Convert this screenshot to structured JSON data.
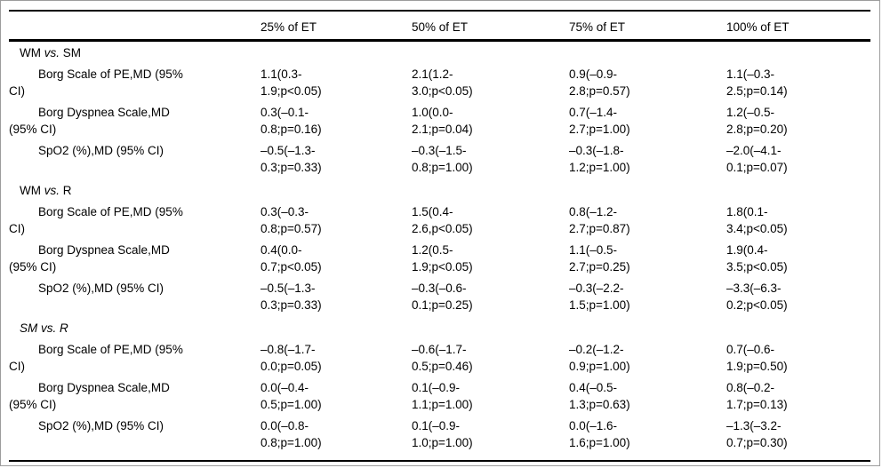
{
  "colors": {
    "rule": "#000000",
    "frame_border": "#9c9c9c",
    "background": "#ffffff",
    "text": "#000000"
  },
  "table": {
    "columns": [
      "",
      "25% of ET",
      "50% of ET",
      "75% of ET",
      "100% of ET"
    ],
    "sections": [
      {
        "label_parts": [
          {
            "text": "WM ",
            "italic": false
          },
          {
            "text": "vs.",
            "italic": true
          },
          {
            "text": " SM",
            "italic": false
          }
        ],
        "rows": [
          {
            "label": "Borg Scale of PE,MD (95%\nCI)",
            "values": [
              "1.1(0.3-\n1.9;p<0.05)",
              "2.1(1.2-\n3.0;p<0.05)",
              "0.9(–0.9-\n2.8;p=0.57)",
              "1.1(–0.3-\n2.5;p=0.14)"
            ]
          },
          {
            "label": "Borg Dyspnea Scale,MD\n(95% CI)",
            "values": [
              "0.3(–0.1-\n0.8;p=0.16)",
              "1.0(0.0-\n2.1;p=0.04)",
              "0.7(–1.4-\n2.7;p=1.00)",
              "1.2(–0.5-\n2.8;p=0.20)"
            ]
          },
          {
            "label": "SpO2 (%),MD (95% CI)",
            "values": [
              "–0.5(–1.3-\n0.3;p=0.33)",
              "–0.3(–1.5-\n0.8;p=1.00)",
              "–0.3(–1.8-\n1.2;p=1.00)",
              "–2.0(–4.1-\n0.1;p=0.07)"
            ]
          }
        ]
      },
      {
        "label_parts": [
          {
            "text": "WM ",
            "italic": false
          },
          {
            "text": "vs.",
            "italic": true
          },
          {
            "text": " R",
            "italic": false
          }
        ],
        "rows": [
          {
            "label": "Borg Scale of PE,MD (95%\nCI)",
            "values": [
              "0.3(–0.3-\n0.8;p=0.57)",
              "1.5(0.4-\n2.6,p<0.05)",
              "0.8(–1.2-\n2.7;p=0.87)",
              "1.8(0.1-\n3.4;p<0.05)"
            ]
          },
          {
            "label": "Borg Dyspnea Scale,MD\n(95% CI)",
            "values": [
              "0.4(0.0-\n0.7;p<0.05)",
              "1.2(0.5-\n1.9;p<0.05)",
              "1.1(–0.5-\n2.7;p=0.25)",
              "1.9(0.4-\n3.5;p<0.05)"
            ]
          },
          {
            "label": "SpO2 (%),MD (95% CI)",
            "values": [
              "–0.5(–1.3-\n0.3;p=0.33)",
              "–0.3(–0.6-\n0.1;p=0.25)",
              "–0.3(–2.2-\n1.5;p=1.00)",
              "–3.3(–6.3-\n0.2;p<0.05)"
            ]
          }
        ]
      },
      {
        "label_parts": [
          {
            "text": "SM vs. R",
            "italic": true
          }
        ],
        "rows": [
          {
            "label": "Borg Scale of PE,MD (95%\nCI)",
            "values": [
              "–0.8(–1.7-\n0.0;p=0.05)",
              "–0.6(–1.7-\n0.5;p=0.46)",
              "–0.2(–1.2-\n0.9;p=1.00)",
              "0.7(–0.6-\n1.9;p=0.50)"
            ]
          },
          {
            "label": "Borg Dyspnea Scale,MD\n(95% CI)",
            "values": [
              "0.0(–0.4-\n0.5;p=1.00)",
              "0.1(–0.9-\n1.1;p=1.00)",
              "0.4(–0.5-\n1.3;p=0.63)",
              "0.8(–0.2-\n1.7;p=0.13)"
            ]
          },
          {
            "label": "SpO2 (%),MD (95% CI)",
            "values": [
              "0.0(–0.8-\n0.8;p=1.00)",
              "0.1(–0.9-\n1.0;p=1.00)",
              "0.0(–1.6-\n1.6;p=1.00)",
              "–1.3(–3.2-\n0.7;p=0.30)"
            ]
          }
        ]
      }
    ]
  }
}
